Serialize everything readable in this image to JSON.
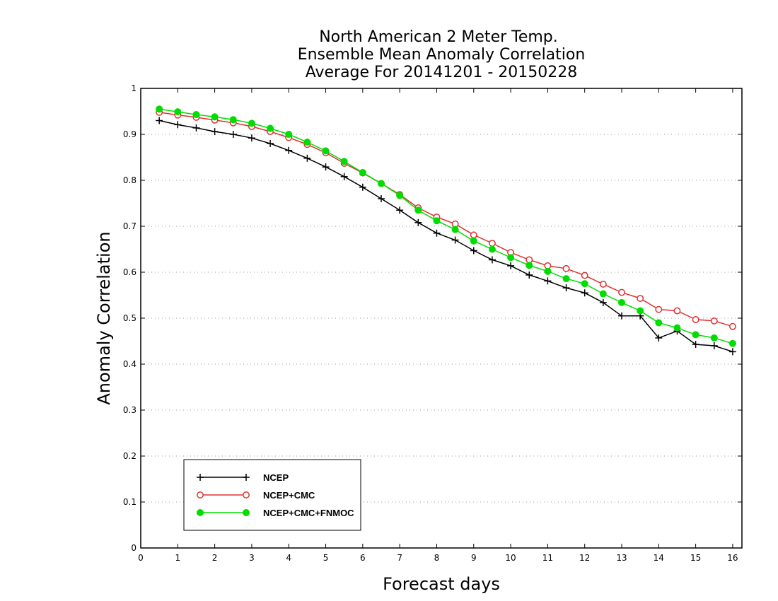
{
  "chart_data": {
    "type": "line",
    "title_lines": [
      "North American 2 Meter Temp.",
      "Ensemble Mean Anomaly Correlation",
      "Average For 20141201 - 20150228"
    ],
    "xlabel": "Forecast days",
    "ylabel": "Anomaly Correlation",
    "xlim": [
      0,
      16.25
    ],
    "ylim": [
      0,
      1
    ],
    "x_ticks": [
      "0",
      "1",
      "2",
      "3",
      "4",
      "5",
      "6",
      "7",
      "8",
      "9",
      "10",
      "11",
      "12",
      "13",
      "14",
      "15",
      "16"
    ],
    "y_ticks": [
      "0",
      "0.1",
      "0.2",
      "0.3",
      "0.4",
      "0.5",
      "0.6",
      "0.7",
      "0.8",
      "0.9",
      "1"
    ],
    "grid": "horizontal-dotted",
    "legend_position": "bottom-left",
    "x": [
      0.5,
      1,
      1.5,
      2,
      2.5,
      3,
      3.5,
      4,
      4.5,
      5,
      5.5,
      6,
      6.5,
      7,
      7.5,
      8,
      8.5,
      9,
      9.5,
      10,
      10.5,
      11,
      11.5,
      12,
      12.5,
      13,
      13.5,
      14,
      14.5,
      15,
      15.5,
      16
    ],
    "series": [
      {
        "name": "NCEP",
        "color": "#000000",
        "marker": "plus",
        "values": [
          0.93,
          0.921,
          0.914,
          0.906,
          0.9,
          0.892,
          0.88,
          0.865,
          0.848,
          0.829,
          0.808,
          0.785,
          0.76,
          0.735,
          0.708,
          0.685,
          0.67,
          0.647,
          0.627,
          0.614,
          0.594,
          0.581,
          0.566,
          0.555,
          0.534,
          0.505,
          0.505,
          0.457,
          0.472,
          0.443,
          0.44,
          0.427
        ]
      },
      {
        "name": "NCEP+CMC",
        "color": "#e03030",
        "marker": "open-circle",
        "values": [
          0.948,
          0.942,
          0.937,
          0.931,
          0.925,
          0.917,
          0.906,
          0.893,
          0.878,
          0.86,
          0.837,
          0.816,
          0.793,
          0.769,
          0.74,
          0.72,
          0.705,
          0.681,
          0.663,
          0.643,
          0.627,
          0.614,
          0.608,
          0.593,
          0.574,
          0.556,
          0.543,
          0.519,
          0.516,
          0.497,
          0.494,
          0.482
        ]
      },
      {
        "name": "NCEP+CMC+FNMOC",
        "color": "#00dd00",
        "marker": "filled-circle",
        "values": [
          0.955,
          0.949,
          0.943,
          0.938,
          0.932,
          0.924,
          0.913,
          0.9,
          0.883,
          0.864,
          0.841,
          0.817,
          0.793,
          0.767,
          0.735,
          0.712,
          0.693,
          0.668,
          0.65,
          0.632,
          0.615,
          0.602,
          0.586,
          0.575,
          0.553,
          0.534,
          0.516,
          0.49,
          0.479,
          0.464,
          0.457,
          0.445
        ]
      }
    ]
  }
}
